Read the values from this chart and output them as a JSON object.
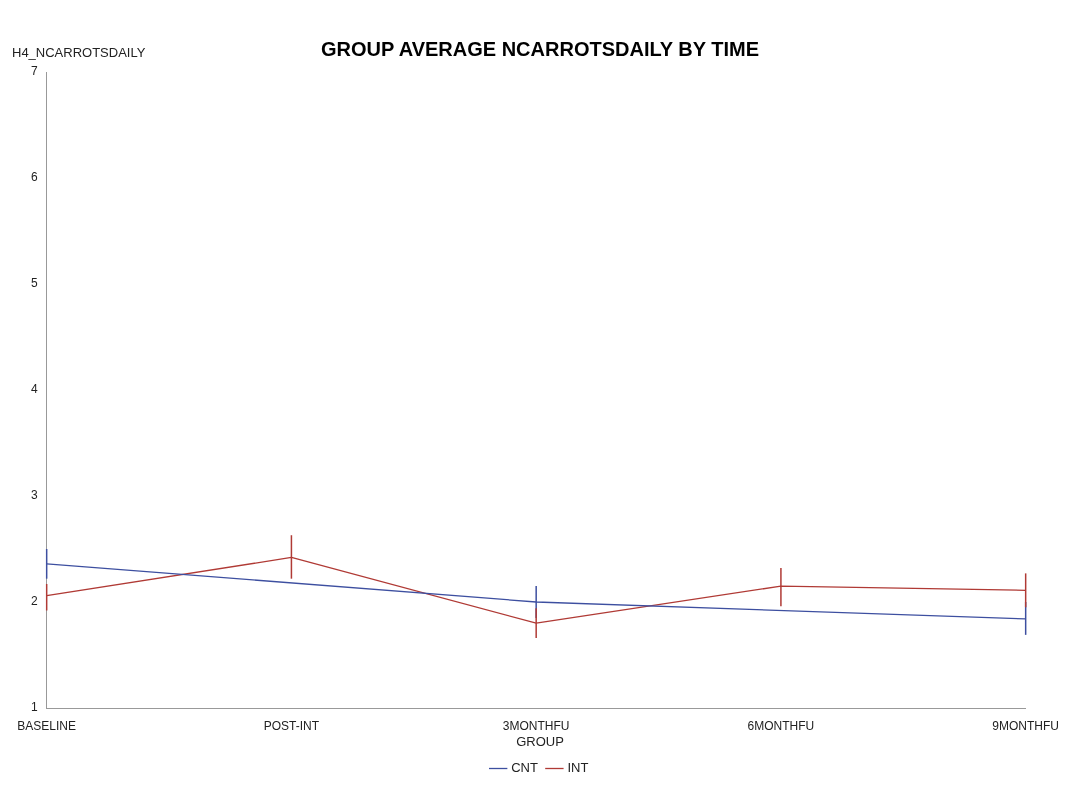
{
  "chart_data": {
    "type": "line",
    "title": "GROUP AVERAGE NCARROTSDAILY BY TIME",
    "ylabel": "H4_NCARROTSDAILY",
    "legend_title": "GROUP",
    "categories": [
      "BASELINE",
      "POST-INT",
      "3MONTHFU",
      "6MONTHFU",
      "9MONTHFU"
    ],
    "series": [
      {
        "name": "CNT",
        "color": "#3d4fa0",
        "values": [
          2.36,
          null,
          2.0,
          null,
          1.84
        ],
        "errors": [
          [
            2.22,
            2.5
          ],
          null,
          [
            1.85,
            2.15
          ],
          null,
          [
            1.69,
            2.0
          ]
        ]
      },
      {
        "name": "INT",
        "color": "#b03a35",
        "values": [
          2.06,
          2.42,
          1.8,
          2.15,
          2.11
        ],
        "errors": [
          [
            1.92,
            2.17
          ],
          [
            2.22,
            2.63
          ],
          [
            1.66,
            1.94
          ],
          [
            1.96,
            2.32
          ],
          [
            1.95,
            2.27
          ]
        ]
      }
    ],
    "ylim": [
      1,
      7
    ],
    "yticks": [
      1,
      2,
      3,
      4,
      5,
      6,
      7
    ],
    "grid": false,
    "legend": "bottom",
    "marker": "none",
    "line_style": "solid"
  }
}
